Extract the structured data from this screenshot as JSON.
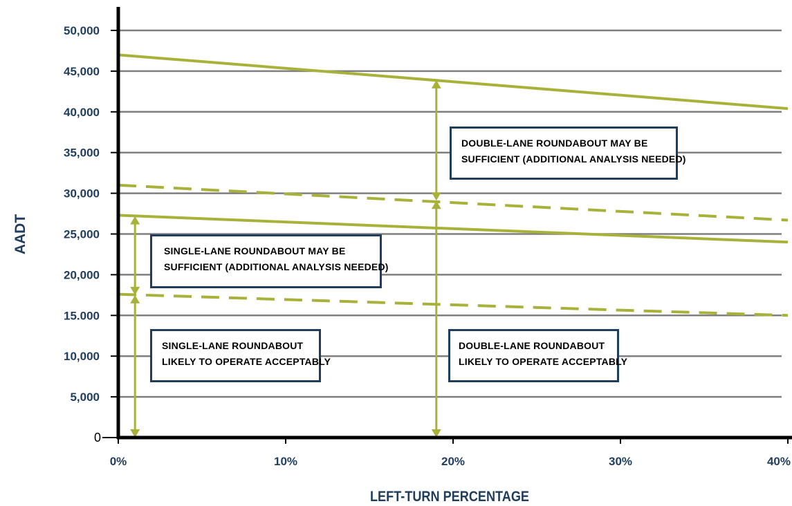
{
  "chart_data": {
    "type": "line",
    "xlabel": "LEFT-TURN PERCENTAGE",
    "ylabel": "AADT",
    "xlim": [
      0,
      40
    ],
    "ylim": [
      0,
      50000
    ],
    "x_tick_labels": [
      "0%",
      "10%",
      "20%",
      "30%",
      "40%"
    ],
    "x_tick_values": [
      0,
      10,
      20,
      30,
      40
    ],
    "y_tick_labels": [
      "0",
      "5,000",
      "10,000",
      "15.000",
      "20,000",
      "25,000",
      "30,000",
      "35,000",
      "40,000",
      "45,000",
      "50,000"
    ],
    "y_tick_values": [
      0,
      5000,
      10000,
      15000,
      20000,
      25000,
      30000,
      35000,
      40000,
      45000,
      50000
    ],
    "grid": true,
    "series": [
      {
        "style": "solid",
        "color": "#a8b23a",
        "x": [
          0,
          40
        ],
        "y": [
          47000,
          40400
        ]
      },
      {
        "style": "dashed",
        "color": "#a8b23a",
        "x": [
          0,
          40
        ],
        "y": [
          31000,
          26700
        ]
      },
      {
        "style": "solid",
        "color": "#a8b23a",
        "x": [
          0,
          40
        ],
        "y": [
          27300,
          24000
        ]
      },
      {
        "style": "dashed",
        "color": "#a8b23a",
        "x": [
          0,
          40
        ],
        "y": [
          17600,
          15000
        ]
      }
    ],
    "ranges": [
      {
        "x": 1,
        "y_from": 0,
        "y_to": 17500
      },
      {
        "x": 1,
        "y_from": 17500,
        "y_to": 27200
      },
      {
        "x": 19,
        "y_from": 0,
        "y_to": 29100
      },
      {
        "x": 19,
        "y_from": 29100,
        "y_to": 43900
      }
    ],
    "annotations": [
      {
        "id": "double-sufficient",
        "lines": [
          "DOUBLE-LANE ROUNDABOUT MAY BE",
          "SUFFICIENT (ADDITIONAL ANALYSIS NEEDED)"
        ]
      },
      {
        "id": "single-sufficient",
        "lines": [
          "SINGLE-LANE ROUNDABOUT MAY BE",
          "SUFFICIENT (ADDITIONAL ANALYSIS NEEDED)"
        ]
      },
      {
        "id": "single-acceptable",
        "lines": [
          "SINGLE-LANE ROUNDABOUT",
          "LIKELY TO OPERATE ACCEPTABLY"
        ]
      },
      {
        "id": "double-acceptable",
        "lines": [
          "DOUBLE-LANE ROUNDABOUT",
          "LIKELY TO OPERATE ACCEPTABLY"
        ]
      }
    ],
    "colors": {
      "threshold": "#a8b23a",
      "label": "#1f3d5c",
      "grid": "#7f7f7f",
      "axis": "#000000"
    }
  }
}
